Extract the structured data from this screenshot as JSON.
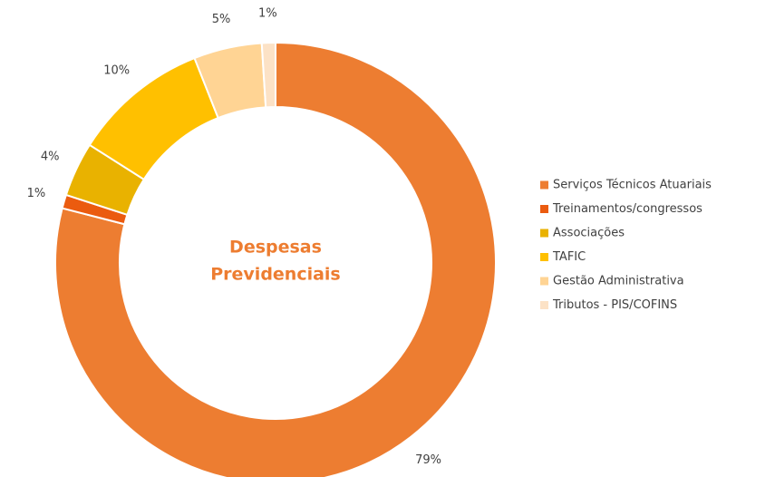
{
  "chart_data": {
    "type": "donut",
    "title": [
      "Despesas",
      "Previdenciais"
    ],
    "categories": [
      "Serviços Técnicos Atuariais",
      "Treinamentos/congressos",
      "Associações",
      "TAFIC",
      "Gestão Administrativa",
      "Tributos -  PIS/COFINS"
    ],
    "values": [
      79,
      1,
      4,
      10,
      5,
      1
    ],
    "value_labels": [
      "79%",
      "1%",
      "4%",
      "10%",
      "5%",
      "1%"
    ],
    "colors": [
      "#ED7D31",
      "#EB5B0F",
      "#E9B200",
      "#FFC000",
      "#FFD494",
      "#FCE2C6"
    ],
    "legend": "right"
  }
}
